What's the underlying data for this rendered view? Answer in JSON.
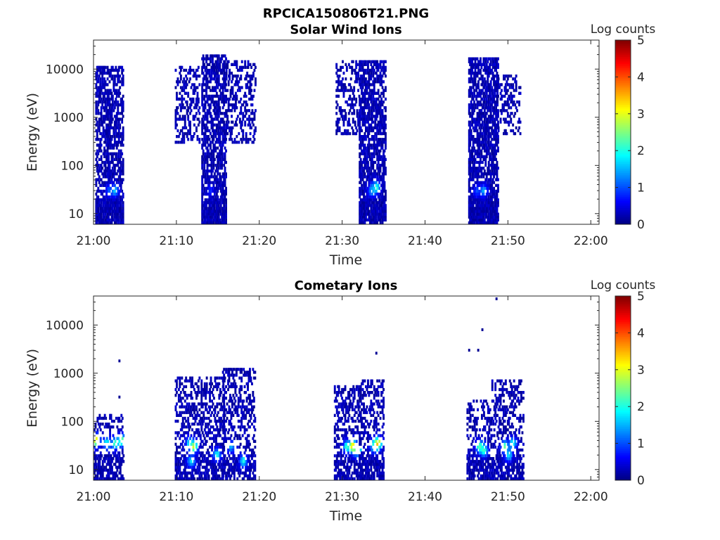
{
  "figure": {
    "title": "RPCICA150806T21.PNG"
  },
  "chart_data": [
    {
      "type": "heatmap",
      "title": "Solar Wind Ions",
      "xlabel": "Time",
      "ylabel": "Energy (eV)",
      "x_ticks": [
        "21:00",
        "21:10",
        "21:20",
        "21:30",
        "21:40",
        "21:50",
        "22:00"
      ],
      "x_range_minutes": [
        0,
        61
      ],
      "y_scale": "log",
      "y_ticks": [
        "10",
        "100",
        "1000",
        "10000"
      ],
      "y_range": [
        6,
        40000
      ],
      "colorbar": {
        "label": "Log counts",
        "range": [
          0,
          5
        ],
        "ticks": [
          "0",
          "1",
          "2",
          "3",
          "4",
          "5"
        ],
        "colormap": "jet"
      },
      "clusters": [
        {
          "t_start": 0.2,
          "t_end": 3.5,
          "e_top": 12000,
          "density": 0.55,
          "seed": 11,
          "hot": [
            {
              "t": 2.5,
              "e": 30,
              "v": 1.6
            },
            {
              "t": 1.8,
              "e": 30,
              "v": 1.1
            }
          ]
        },
        {
          "t_start": 9.8,
          "t_end": 12.8,
          "e_top": 12000,
          "e_bottom": 300,
          "density": 0.28,
          "seed": 23,
          "hot": []
        },
        {
          "t_start": 13.0,
          "t_end": 16.0,
          "e_top": 20000,
          "density": 0.55,
          "seed": 37,
          "hot": [
            {
              "t": 14.0,
              "e": 30,
              "v": 0.8
            }
          ]
        },
        {
          "t_start": 15.8,
          "t_end": 19.5,
          "e_top": 15000,
          "e_bottom": 300,
          "density": 0.3,
          "seed": 41,
          "hot": []
        },
        {
          "t_start": 29.2,
          "t_end": 32.0,
          "e_top": 15000,
          "e_bottom": 400,
          "density": 0.28,
          "seed": 53,
          "hot": []
        },
        {
          "t_start": 32.0,
          "t_end": 35.2,
          "e_top": 15000,
          "density": 0.55,
          "seed": 67,
          "hot": [
            {
              "t": 34.0,
              "e": 35,
              "v": 2.2
            },
            {
              "t": 33.5,
              "e": 30,
              "v": 1.5
            }
          ]
        },
        {
          "t_start": 45.2,
          "t_end": 48.8,
          "e_top": 18000,
          "density": 0.6,
          "seed": 79,
          "hot": [
            {
              "t": 47.0,
              "e": 30,
              "v": 1.5
            },
            {
              "t": 46.2,
              "e": 30,
              "v": 1.0
            }
          ]
        },
        {
          "t_start": 48.5,
          "t_end": 51.5,
          "e_top": 8000,
          "e_bottom": 400,
          "density": 0.28,
          "seed": 83,
          "hot": []
        }
      ]
    },
    {
      "type": "heatmap",
      "title": "Cometary Ions",
      "xlabel": "Time",
      "ylabel": "Energy (eV)",
      "x_ticks": [
        "21:00",
        "21:10",
        "21:20",
        "21:30",
        "21:40",
        "21:50",
        "22:00"
      ],
      "x_range_minutes": [
        0,
        61
      ],
      "y_scale": "log",
      "y_ticks": [
        "10",
        "100",
        "1000",
        "10000"
      ],
      "y_range": [
        6,
        40000
      ],
      "colorbar": {
        "label": "Log counts",
        "range": [
          0,
          5
        ],
        "ticks": [
          "0",
          "1",
          "2",
          "3",
          "4",
          "5"
        ],
        "colormap": "jet"
      },
      "clusters": [
        {
          "t_start": 0.0,
          "t_end": 3.6,
          "e_top": 150,
          "density": 0.3,
          "seed": 101,
          "hot": [
            {
              "t": 0.2,
              "e": 40,
              "v": 3.5
            },
            {
              "t": 1.5,
              "e": 35,
              "v": 2.0
            },
            {
              "t": 2.5,
              "e": 35,
              "v": 2.3
            },
            {
              "t": 3.3,
              "e": 40,
              "v": 2.6
            }
          ]
        },
        {
          "t_start": 9.8,
          "t_end": 15.8,
          "e_top": 800,
          "density": 0.33,
          "seed": 113,
          "hot": [
            {
              "t": 12.0,
              "e": 30,
              "v": 3.0
            },
            {
              "t": 11.5,
              "e": 35,
              "v": 2.0
            },
            {
              "t": 14.8,
              "e": 20,
              "v": 2.0
            },
            {
              "t": 11.7,
              "e": 15,
              "v": 1.8
            }
          ]
        },
        {
          "t_start": 15.5,
          "t_end": 19.5,
          "e_top": 1200,
          "density": 0.33,
          "seed": 127,
          "hot": [
            {
              "t": 18.0,
              "e": 15,
              "v": 2.0
            },
            {
              "t": 16.5,
              "e": 30,
              "v": 1.5
            }
          ]
        },
        {
          "t_start": 29.0,
          "t_end": 32.3,
          "e_top": 600,
          "density": 0.33,
          "seed": 131,
          "hot": [
            {
              "t": 31.2,
              "e": 30,
              "v": 3.6
            },
            {
              "t": 30.5,
              "e": 30,
              "v": 2.2
            },
            {
              "t": 31.8,
              "e": 25,
              "v": 2.6
            }
          ]
        },
        {
          "t_start": 32.0,
          "t_end": 35.0,
          "e_top": 700,
          "density": 0.33,
          "seed": 137,
          "hot": [
            {
              "t": 34.2,
              "e": 35,
              "v": 3.6
            },
            {
              "t": 33.8,
              "e": 30,
              "v": 2.4
            }
          ]
        },
        {
          "t_start": 45.0,
          "t_end": 48.0,
          "e_top": 300,
          "density": 0.33,
          "seed": 149,
          "hot": [
            {
              "t": 46.5,
              "e": 30,
              "v": 2.4
            },
            {
              "t": 47.0,
              "e": 25,
              "v": 2.2
            }
          ]
        },
        {
          "t_start": 48.0,
          "t_end": 51.8,
          "e_top": 700,
          "density": 0.33,
          "seed": 151,
          "hot": [
            {
              "t": 49.5,
              "e": 30,
              "v": 2.4
            },
            {
              "t": 50.0,
              "e": 20,
              "v": 1.8
            },
            {
              "t": 50.5,
              "e": 35,
              "v": 2.0
            }
          ]
        }
      ],
      "isolated_points": [
        {
          "t": 3.0,
          "e": 1800,
          "v": 0.1
        },
        {
          "t": 3.0,
          "e": 320,
          "v": 0.1
        },
        {
          "t": 34.0,
          "e": 2600,
          "v": 0.1
        },
        {
          "t": 45.2,
          "e": 3000,
          "v": 0.1
        },
        {
          "t": 46.3,
          "e": 3000,
          "v": 0.1
        },
        {
          "t": 46.8,
          "e": 8000,
          "v": 0.1
        },
        {
          "t": 48.5,
          "e": 35000,
          "v": 0.1
        }
      ]
    }
  ]
}
